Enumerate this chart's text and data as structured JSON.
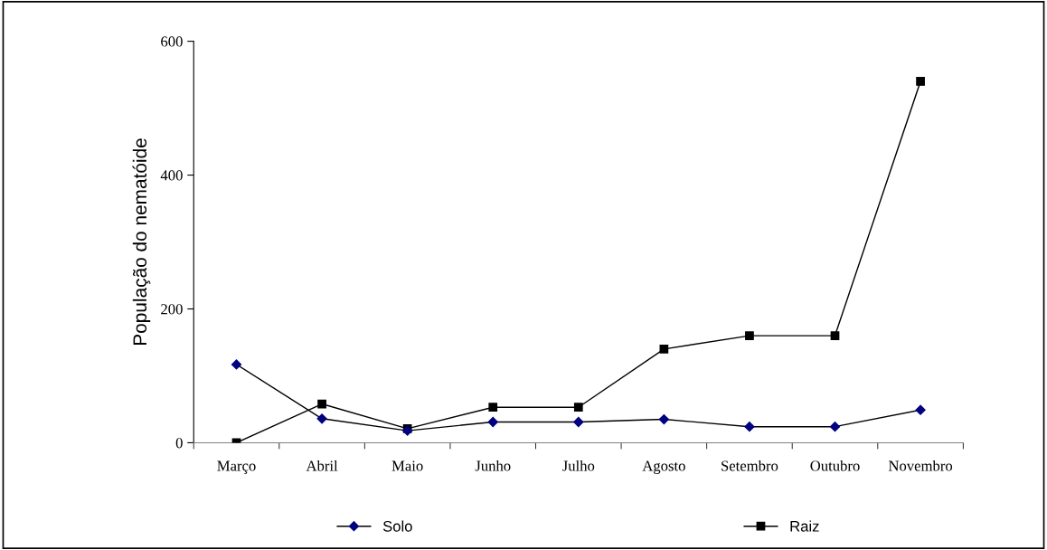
{
  "chart_data": {
    "type": "line",
    "ylabel": "População do nematóide",
    "categories": [
      "Março",
      "Abril",
      "Maio",
      "Junho",
      "Julho",
      "Agosto",
      "Setembro",
      "Outubro",
      "Novembro"
    ],
    "series": [
      {
        "name": "Solo",
        "color": "#000080",
        "marker": "diamond",
        "values": [
          117,
          36,
          18,
          31,
          31,
          35,
          24,
          24,
          49
        ]
      },
      {
        "name": "Raiz",
        "color": "#000000",
        "marker": "square",
        "values": [
          0,
          58,
          21,
          53,
          53,
          140,
          160,
          160,
          540
        ]
      }
    ],
    "ylim": [
      0,
      600
    ],
    "yticks": [
      0,
      200,
      400,
      600
    ],
    "grid": false,
    "legend": "bottom",
    "line_style": "solid"
  }
}
